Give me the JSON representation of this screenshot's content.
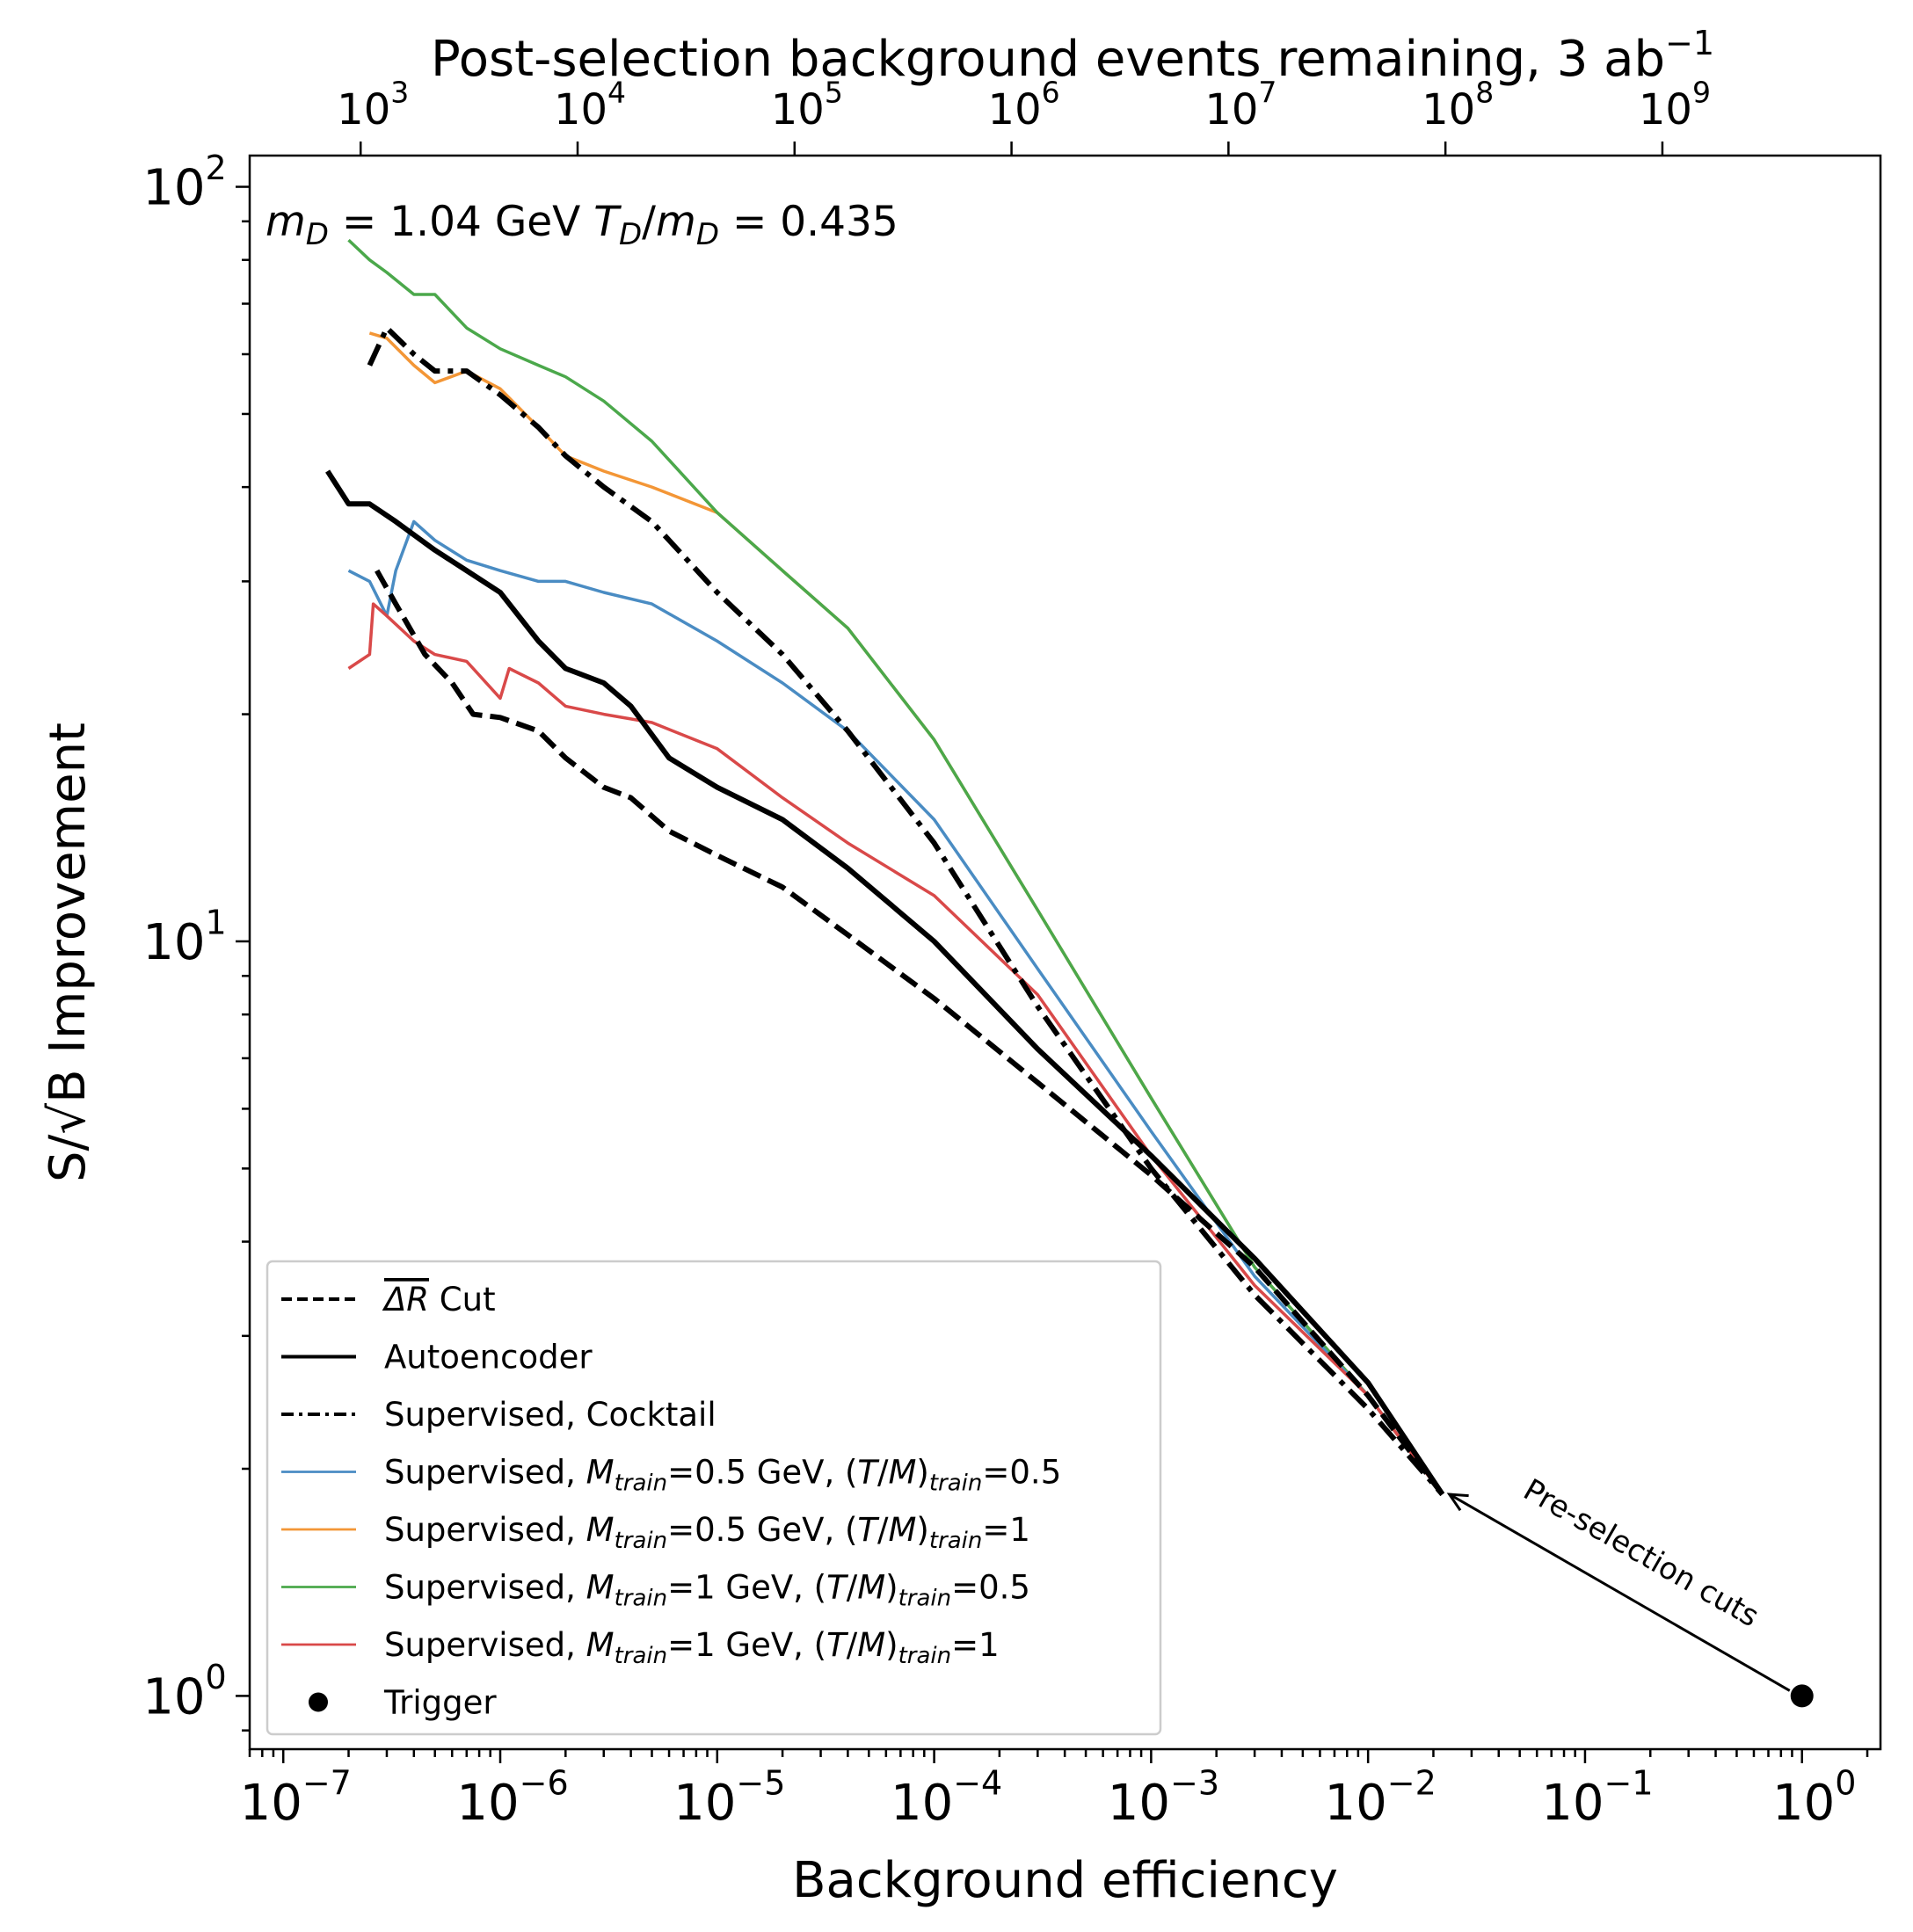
{
  "chart_data": {
    "type": "line",
    "xscale": "log",
    "yscale": "log",
    "xlim": [
      7e-08,
      2.3
    ],
    "ylim": [
      0.85,
      110
    ],
    "xlabel": "Background efficiency",
    "ylabel": "S/√B Improvement",
    "top_axis_label": "Post-selection background events remaining, 3 ab",
    "top_axis_label_sup": "−1",
    "annotation": "m_D = 1.04 GeV  T_D/m_D = 0.435",
    "x_ticks": [
      {
        "value": 1e-07,
        "base": "10",
        "exp": "−7"
      },
      {
        "value": 1e-06,
        "base": "10",
        "exp": "−6"
      },
      {
        "value": 1e-05,
        "base": "10",
        "exp": "−5"
      },
      {
        "value": 0.0001,
        "base": "10",
        "exp": "−4"
      },
      {
        "value": 0.001,
        "base": "10",
        "exp": "−3"
      },
      {
        "value": 0.01,
        "base": "10",
        "exp": "−2"
      },
      {
        "value": 0.1,
        "base": "10",
        "exp": "−1"
      },
      {
        "value": 1,
        "base": "10",
        "exp": "0"
      }
    ],
    "y_ticks": [
      {
        "value": 1,
        "base": "10",
        "exp": "0"
      },
      {
        "value": 10,
        "base": "10",
        "exp": "1"
      },
      {
        "value": 100,
        "base": "10",
        "exp": "2"
      }
    ],
    "top_ticks": [
      {
        "events": 1000,
        "base": "10",
        "exp": "3"
      },
      {
        "events": 10000,
        "base": "10",
        "exp": "4"
      },
      {
        "events": 100000,
        "base": "10",
        "exp": "5"
      },
      {
        "events": 1000000,
        "base": "10",
        "exp": "6"
      },
      {
        "events": 10000000,
        "base": "10",
        "exp": "7"
      },
      {
        "events": 100000000,
        "base": "10",
        "exp": "8"
      },
      {
        "events": 1000000000,
        "base": "10",
        "exp": "9"
      }
    ],
    "top_axis_events_at_x1": 4400000000.0,
    "series": [
      {
        "name": "ΔR Cut",
        "label_overline": "ΔR",
        "label_rest": " Cut",
        "color": "#000000",
        "style": "dashed",
        "width": 6,
        "points": [
          [
            2.7e-07,
            31
          ],
          [
            3.3e-07,
            28
          ],
          [
            4.5e-07,
            24
          ],
          [
            6e-07,
            22
          ],
          [
            7.5e-07,
            20
          ],
          [
            1e-06,
            19.8
          ],
          [
            1.5e-06,
            19
          ],
          [
            2e-06,
            17.5
          ],
          [
            3e-06,
            16
          ],
          [
            4e-06,
            15.5
          ],
          [
            6e-06,
            14
          ],
          [
            1e-05,
            13
          ],
          [
            2e-05,
            11.8
          ],
          [
            4e-05,
            10.2
          ],
          [
            0.0001,
            8.4
          ],
          [
            0.0003,
            6.5
          ],
          [
            0.001,
            4.9
          ],
          [
            0.003,
            3.7
          ],
          [
            0.01,
            2.5
          ],
          [
            0.022,
            1.85
          ]
        ]
      },
      {
        "name": "Autoencoder",
        "color": "#000000",
        "style": "solid",
        "width": 6,
        "points": [
          [
            1.6e-07,
            42
          ],
          [
            2e-07,
            38
          ],
          [
            2.5e-07,
            38
          ],
          [
            3.3e-07,
            36
          ],
          [
            5e-07,
            33
          ],
          [
            7e-07,
            31
          ],
          [
            1e-06,
            29
          ],
          [
            1.5e-06,
            25
          ],
          [
            2e-06,
            23
          ],
          [
            3e-06,
            22
          ],
          [
            4e-06,
            20.5
          ],
          [
            6e-06,
            17.5
          ],
          [
            1e-05,
            16
          ],
          [
            2e-05,
            14.5
          ],
          [
            4e-05,
            12.5
          ],
          [
            0.0001,
            10
          ],
          [
            0.0003,
            7.2
          ],
          [
            0.001,
            5.2
          ],
          [
            0.003,
            3.8
          ],
          [
            0.01,
            2.6
          ],
          [
            0.022,
            1.85
          ]
        ]
      },
      {
        "name": "Supervised, Cocktail",
        "color": "#000000",
        "style": "dashdot",
        "width": 6,
        "points": [
          [
            2.5e-07,
            58
          ],
          [
            3e-07,
            65
          ],
          [
            4e-07,
            60
          ],
          [
            5e-07,
            57
          ],
          [
            7e-07,
            57
          ],
          [
            1e-06,
            53
          ],
          [
            1.5e-06,
            48
          ],
          [
            2e-06,
            44
          ],
          [
            3e-06,
            40
          ],
          [
            5e-06,
            36
          ],
          [
            1e-05,
            29
          ],
          [
            2e-05,
            24
          ],
          [
            4e-05,
            19
          ],
          [
            0.0001,
            13.5
          ],
          [
            0.0003,
            8.2
          ],
          [
            0.001,
            5
          ],
          [
            0.003,
            3.4
          ],
          [
            0.01,
            2.4
          ],
          [
            0.022,
            1.85
          ]
        ]
      },
      {
        "name": "Supervised, Mtrain=0.5 GeV, (T/M)train=0.5",
        "mlabel": "0.5 GeV",
        "tlabel": "0.5",
        "color": "#4a8cc3",
        "style": "solid",
        "width": 3.5,
        "points": [
          [
            2e-07,
            31
          ],
          [
            2.5e-07,
            30
          ],
          [
            3e-07,
            27
          ],
          [
            3.3e-07,
            31
          ],
          [
            4e-07,
            36
          ],
          [
            5e-07,
            34
          ],
          [
            7e-07,
            32
          ],
          [
            1e-06,
            31
          ],
          [
            1.5e-06,
            30
          ],
          [
            2e-06,
            30
          ],
          [
            3e-06,
            29
          ],
          [
            5e-06,
            28
          ],
          [
            1e-05,
            25
          ],
          [
            2e-05,
            22
          ],
          [
            4e-05,
            19
          ],
          [
            0.0001,
            14.5
          ],
          [
            0.0003,
            9.2
          ],
          [
            0.001,
            5.6
          ],
          [
            0.003,
            3.6
          ],
          [
            0.01,
            2.5
          ],
          [
            0.022,
            1.85
          ]
        ]
      },
      {
        "name": "Supervised, Mtrain=0.5 GeV, (T/M)train=1",
        "mlabel": "0.5 GeV",
        "tlabel": "1",
        "color": "#f39636",
        "style": "solid",
        "width": 3.5,
        "points": [
          [
            2.5e-07,
            64
          ],
          [
            3e-07,
            63
          ],
          [
            4e-07,
            58
          ],
          [
            5e-07,
            55
          ],
          [
            7e-07,
            57
          ],
          [
            1e-06,
            54
          ],
          [
            1.5e-06,
            48
          ],
          [
            2e-06,
            44
          ],
          [
            3e-06,
            42
          ],
          [
            5e-06,
            40
          ],
          [
            1e-05,
            37
          ],
          [
            2e-05,
            31
          ],
          [
            4e-05,
            26
          ],
          [
            0.0001,
            18.5
          ],
          [
            0.0003,
            11
          ],
          [
            0.001,
            6.2
          ],
          [
            0.003,
            3.7
          ],
          [
            0.01,
            2.5
          ],
          [
            0.022,
            1.85
          ]
        ]
      },
      {
        "name": "Supervised, Mtrain=1 GeV, (T/M)train=0.5",
        "mlabel": "1 GeV",
        "tlabel": "0.5",
        "color": "#4ba84b",
        "style": "solid",
        "width": 3.5,
        "points": [
          [
            2e-07,
            85
          ],
          [
            2.5e-07,
            80
          ],
          [
            3e-07,
            77
          ],
          [
            4e-07,
            72
          ],
          [
            5e-07,
            72
          ],
          [
            7e-07,
            65
          ],
          [
            1e-06,
            61
          ],
          [
            1.5e-06,
            58
          ],
          [
            2e-06,
            56
          ],
          [
            3e-06,
            52
          ],
          [
            5e-06,
            46
          ],
          [
            1e-05,
            37
          ],
          [
            2e-05,
            31
          ],
          [
            4e-05,
            26
          ],
          [
            0.0001,
            18.5
          ],
          [
            0.0003,
            11
          ],
          [
            0.001,
            6.2
          ],
          [
            0.003,
            3.7
          ],
          [
            0.01,
            2.5
          ],
          [
            0.022,
            1.85
          ]
        ]
      },
      {
        "name": "Supervised, Mtrain=1 GeV, (T/M)train=1",
        "mlabel": "1 GeV",
        "tlabel": "1",
        "color": "#d94949",
        "style": "solid",
        "width": 3.5,
        "points": [
          [
            2e-07,
            23
          ],
          [
            2.5e-07,
            24
          ],
          [
            2.6e-07,
            28
          ],
          [
            3e-07,
            27
          ],
          [
            4e-07,
            25
          ],
          [
            5e-07,
            24
          ],
          [
            7e-07,
            23.5
          ],
          [
            1e-06,
            21
          ],
          [
            1.1e-06,
            23
          ],
          [
            1.5e-06,
            22
          ],
          [
            2e-06,
            20.5
          ],
          [
            3e-06,
            20
          ],
          [
            5e-06,
            19.5
          ],
          [
            1e-05,
            18
          ],
          [
            2e-05,
            15.5
          ],
          [
            4e-05,
            13.5
          ],
          [
            0.0001,
            11.5
          ],
          [
            0.0003,
            8.5
          ],
          [
            0.001,
            5.2
          ],
          [
            0.003,
            3.5
          ],
          [
            0.01,
            2.5
          ],
          [
            0.022,
            1.85
          ]
        ]
      }
    ],
    "trigger": {
      "name": "Trigger",
      "x": 1,
      "y": 1
    },
    "arrow_label": "Pre-selection cuts",
    "legend_position": "lower-left"
  }
}
